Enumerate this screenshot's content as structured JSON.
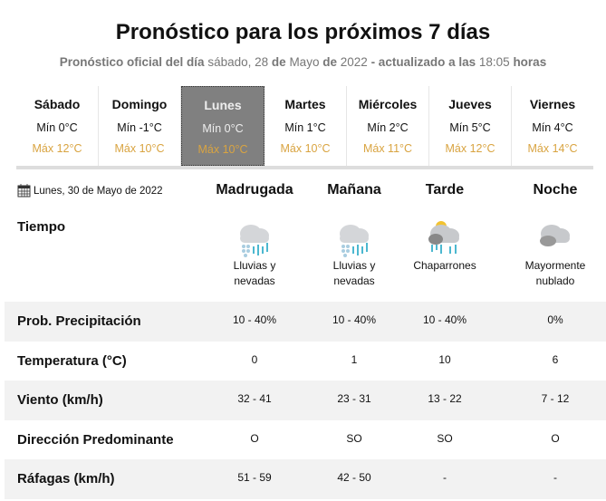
{
  "title": "Pronóstico para los próximos 7 días",
  "subtitle": {
    "p1": "Pronóstico oficial del día",
    "p2": "sábado, 28",
    "p3": "de",
    "p4": "Mayo",
    "p5": "de",
    "p6": "2022",
    "p7": "- actualizado a las",
    "p8": "18:05",
    "p9": "horas"
  },
  "days": [
    {
      "name": "Sábado",
      "min": "Mín 0°C",
      "max": "Máx 12°C"
    },
    {
      "name": "Domingo",
      "min": "Mín -1°C",
      "max": "Máx 10°C"
    },
    {
      "name": "Lunes",
      "min": "Mín 0°C",
      "max": "Máx 10°C",
      "selected": true
    },
    {
      "name": "Martes",
      "min": "Mín 1°C",
      "max": "Máx 10°C"
    },
    {
      "name": "Miércoles",
      "min": "Mín 2°C",
      "max": "Máx 11°C"
    },
    {
      "name": "Jueves",
      "min": "Mín 5°C",
      "max": "Máx 12°C"
    },
    {
      "name": "Viernes",
      "min": "Mín 4°C",
      "max": "Máx 14°C"
    }
  ],
  "date": "Lunes, 30 de Mayo de 2022",
  "periods": [
    "Madrugada",
    "Mañana",
    "Tarde",
    "Noche"
  ],
  "weather_label": "Tiempo",
  "weather": [
    {
      "l1": "Lluvias y",
      "l2": "nevadas",
      "icon": "rain-snow-icon"
    },
    {
      "l1": "Lluvias y",
      "l2": "nevadas",
      "icon": "rain-snow-icon"
    },
    {
      "l1": "Chaparrones",
      "l2": "",
      "icon": "showers-icon"
    },
    {
      "l1": "Mayormente",
      "l2": "nublado",
      "icon": "mostly-cloudy-night-icon"
    }
  ],
  "rows": [
    {
      "label": "Prob. Precipitación",
      "values": [
        "10 - 40%",
        "10 - 40%",
        "10 - 40%",
        "0%"
      ]
    },
    {
      "label": "Temperatura (°C)",
      "values": [
        "0",
        "1",
        "10",
        "6"
      ]
    },
    {
      "label": "Viento (km/h)",
      "values": [
        "32 - 41",
        "23 - 31",
        "13 - 22",
        "7 - 12"
      ]
    },
    {
      "label": "Dirección Predominante",
      "values": [
        "O",
        "SO",
        "SO",
        "O"
      ]
    },
    {
      "label": "Ráfagas (km/h)",
      "values": [
        "51 - 59",
        "42 - 50",
        "-",
        "-"
      ]
    }
  ],
  "colors": {
    "max_temp": "#d9a441",
    "selected_tab": "#808080",
    "stripe": "#f2f2f2"
  }
}
